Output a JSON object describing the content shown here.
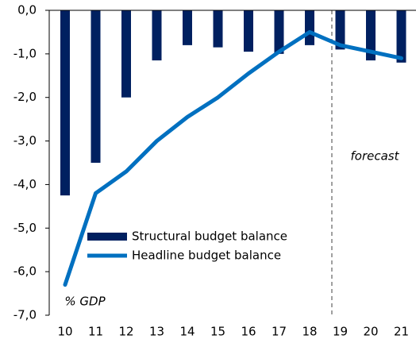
{
  "chart_data": {
    "type": "bar",
    "categories": [
      "10",
      "11",
      "12",
      "13",
      "14",
      "15",
      "16",
      "17",
      "18",
      "19",
      "20",
      "21"
    ],
    "series": [
      {
        "name": "Structural budget balance",
        "type": "bar",
        "color": "#002060",
        "values": [
          -4.25,
          -3.5,
          -2.0,
          -1.15,
          -0.8,
          -0.85,
          -0.95,
          -1.0,
          -0.8,
          -0.9,
          -1.15,
          -1.2
        ]
      },
      {
        "name": "Headline budget balance",
        "type": "line",
        "color": "#0070c0",
        "values": [
          -6.3,
          -4.2,
          -3.7,
          -3.0,
          -2.45,
          -2.0,
          -1.45,
          -0.95,
          -0.5,
          -0.8,
          -0.95,
          -1.1
        ]
      }
    ],
    "ylim": [
      -7,
      0
    ],
    "yticks": [
      {
        "value": 0,
        "label": "0,0"
      },
      {
        "value": -1,
        "label": "-1,0"
      },
      {
        "value": -2,
        "label": "-2,0"
      },
      {
        "value": -3,
        "label": "-3,0"
      },
      {
        "value": -4,
        "label": "-4,0"
      },
      {
        "value": -5,
        "label": "-5,0"
      },
      {
        "value": -6,
        "label": "-6,0"
      },
      {
        "value": -7,
        "label": "-7,0"
      }
    ],
    "annotations": [
      "forecast",
      "% GDP"
    ]
  }
}
